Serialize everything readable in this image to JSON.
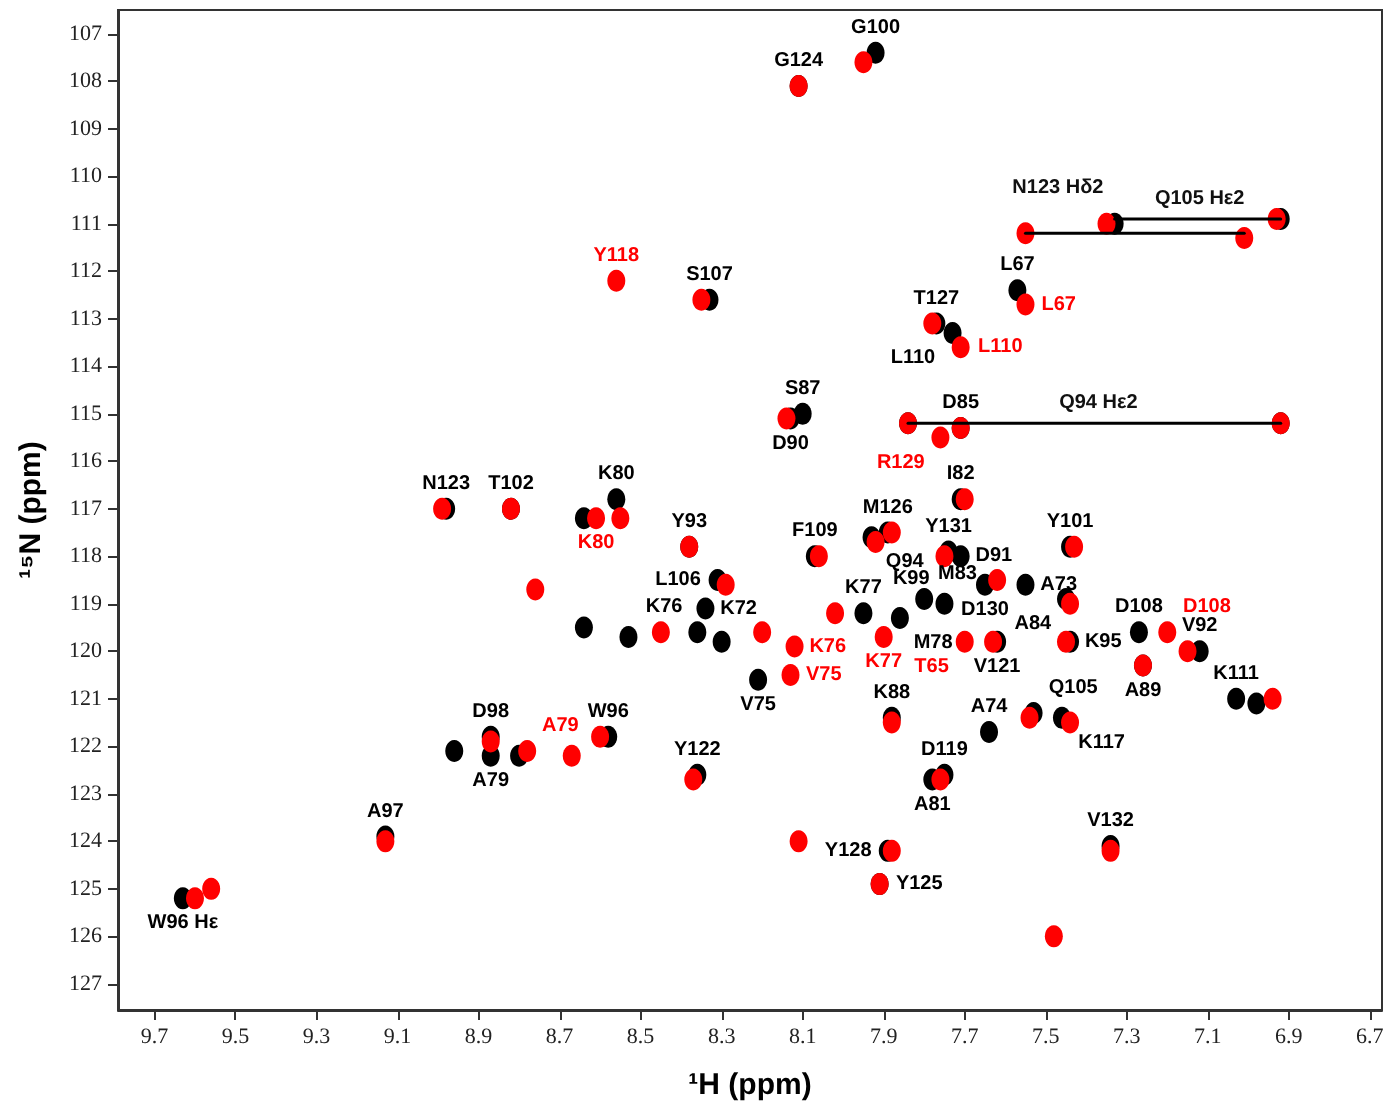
{
  "chart_data": {
    "type": "scatter",
    "xlabel": "¹H (ppm)",
    "ylabel": "¹⁵N (ppm)",
    "xlim": [
      9.79,
      6.67
    ],
    "xticks": [
      9.7,
      9.5,
      9.3,
      9.1,
      8.9,
      8.7,
      8.5,
      8.3,
      8.1,
      7.9,
      7.7,
      7.5,
      7.3,
      7.1,
      6.9,
      6.7
    ],
    "ylim": [
      127.55,
      106.5
    ],
    "yticks": [
      107,
      108,
      109,
      110,
      111,
      112,
      113,
      114,
      115,
      116,
      117,
      118,
      119,
      120,
      121,
      122,
      123,
      124,
      125,
      126,
      127
    ],
    "grid": false,
    "marker": "circle",
    "line_style": "solid",
    "series": [
      {
        "color": "#000000",
        "x": [
          7.92,
          8.11,
          7.33,
          6.92,
          7.57,
          7.77,
          7.73,
          8.33,
          8.13,
          8.1,
          7.84,
          6.92,
          7.71,
          7.71,
          8.98,
          8.82,
          8.56,
          8.64,
          8.38,
          8.31,
          8.34,
          8.36,
          8.64,
          8.53,
          8.3,
          8.07,
          7.93,
          7.89,
          7.74,
          7.71,
          7.65,
          7.55,
          7.45,
          7.44,
          7.95,
          7.86,
          7.8,
          7.75,
          7.62,
          7.44,
          7.27,
          7.12,
          7.26,
          7.03,
          6.98,
          8.21,
          7.88,
          7.64,
          7.53,
          7.46,
          7.78,
          7.75,
          7.34,
          7.89,
          7.91,
          8.87,
          8.87,
          8.96,
          8.8,
          8.58,
          8.36,
          9.13,
          9.63
        ],
        "values": [
          107.4,
          108.1,
          111.0,
          110.9,
          112.4,
          113.1,
          113.3,
          112.6,
          115.1,
          115.0,
          115.2,
          115.2,
          115.3,
          116.8,
          117.0,
          117.0,
          116.8,
          117.2,
          117.8,
          118.5,
          119.1,
          119.6,
          119.5,
          119.7,
          119.8,
          118.0,
          117.6,
          117.5,
          117.9,
          118.0,
          118.6,
          118.6,
          118.9,
          117.8,
          119.2,
          119.3,
          118.9,
          119.0,
          119.8,
          119.8,
          119.6,
          120.0,
          120.3,
          121.0,
          121.1,
          120.6,
          121.4,
          121.7,
          121.3,
          121.4,
          122.7,
          122.6,
          124.1,
          124.2,
          124.9,
          121.8,
          122.2,
          122.1,
          122.2,
          121.8,
          122.6,
          123.9,
          125.2
        ],
        "value_labels": [
          "G100",
          "G124",
          null,
          null,
          "L67",
          "T127",
          "L110",
          "S107",
          "D90",
          "S87",
          null,
          null,
          "D85",
          "I82",
          "N123",
          "T102",
          "K80",
          null,
          "Y93",
          "L106",
          "K72",
          "K76",
          null,
          null,
          null,
          "F109",
          "Q94",
          "M126",
          "Y131",
          "D91",
          "D130",
          "A73",
          "A84",
          "Y101",
          "K77",
          "M78",
          "M83",
          "K99",
          "V121",
          "K95",
          "D108",
          "V92",
          "A89",
          "K111",
          null,
          "V75",
          "K88",
          "A74",
          "Q105",
          "K117",
          "A81",
          "D119",
          "V132",
          "Y128",
          "Y125",
          "D98",
          "A79",
          null,
          null,
          "W96",
          "Y122",
          "A97",
          "W96 Hε"
        ]
      },
      {
        "color": "#ff0000",
        "x": [
          7.95,
          8.11,
          7.35,
          6.93,
          7.55,
          7.01,
          7.55,
          7.78,
          7.71,
          8.56,
          8.35,
          8.14,
          7.84,
          6.92,
          7.76,
          7.71,
          7.7,
          8.99,
          8.82,
          8.61,
          8.55,
          8.38,
          8.76,
          8.29,
          8.45,
          8.12,
          8.2,
          8.13,
          8.06,
          7.88,
          7.92,
          7.75,
          7.62,
          7.43,
          7.44,
          7.9,
          8.02,
          7.63,
          7.45,
          7.2,
          7.15,
          7.26,
          6.94,
          7.88,
          7.54,
          7.44,
          7.76,
          8.11,
          7.88,
          7.91,
          7.34,
          7.48,
          8.87,
          8.78,
          8.67,
          8.6,
          8.37,
          9.13,
          9.6,
          9.56,
          7.7
        ],
        "values": [
          107.6,
          108.1,
          111.0,
          110.9,
          111.2,
          111.3,
          112.7,
          113.1,
          113.6,
          112.2,
          112.6,
          115.1,
          115.2,
          115.2,
          115.5,
          115.3,
          116.8,
          117.0,
          117.0,
          117.2,
          117.2,
          117.8,
          118.7,
          118.6,
          119.6,
          119.9,
          119.6,
          120.5,
          118.0,
          117.5,
          117.7,
          118.0,
          118.5,
          117.8,
          119.0,
          119.7,
          119.2,
          119.8,
          119.8,
          119.6,
          120.0,
          120.3,
          121.0,
          121.5,
          121.4,
          121.5,
          122.7,
          124.0,
          124.2,
          124.9,
          124.2,
          126.0,
          121.9,
          122.1,
          122.2,
          121.8,
          122.7,
          124.0,
          125.2,
          125.0,
          119.8
        ],
        "value_labels": [
          null,
          null,
          null,
          null,
          null,
          null,
          "L67",
          null,
          "L110",
          "Y118",
          null,
          null,
          null,
          null,
          "R129",
          null,
          null,
          null,
          null,
          "K80",
          null,
          null,
          null,
          null,
          null,
          "K76",
          null,
          "V75",
          null,
          null,
          null,
          null,
          null,
          null,
          null,
          "K77",
          null,
          null,
          null,
          "D108",
          null,
          null,
          null,
          null,
          null,
          null,
          null,
          null,
          null,
          null,
          null,
          null,
          null,
          "A79",
          null,
          null,
          null,
          null,
          null,
          null,
          "T65"
        ]
      },
      {
        "type": "line",
        "marker": "none",
        "color": "#000000",
        "x": [
          7.33,
          6.92
        ],
        "values": [
          110.9,
          110.9
        ]
      },
      {
        "type": "line",
        "marker": "none",
        "color": "#000000",
        "x": [
          7.55,
          7.01
        ],
        "values": [
          111.2,
          111.2
        ]
      },
      {
        "type": "line",
        "marker": "none",
        "color": "#000000",
        "x": [
          7.84,
          6.92
        ],
        "values": [
          115.2,
          115.2
        ]
      }
    ],
    "annotations": [
      {
        "text": "Q105 Hε2",
        "x": 7.12,
        "y": 110.9
      },
      {
        "text": "N123 Hδ2",
        "x": 7.47,
        "y": 111.2
      },
      {
        "text": "Q94 Hε2",
        "x": 7.37,
        "y": 115.2
      }
    ]
  }
}
